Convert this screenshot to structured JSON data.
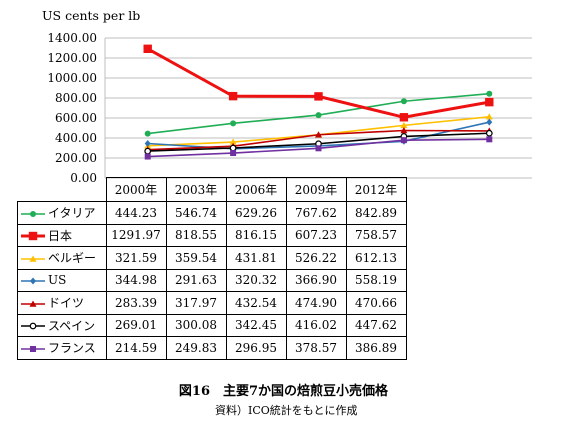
{
  "chart_data": {
    "type": "line",
    "ylabel": "US cents per lb",
    "categories": [
      "2000年",
      "2003年",
      "2006年",
      "2009年",
      "2012年"
    ],
    "ylim": [
      0,
      1400
    ],
    "yticks": [
      "0.00",
      "200.00",
      "400.00",
      "600.00",
      "800.00",
      "1000.00",
      "1200.00",
      "1400.00"
    ],
    "grid": true,
    "legend": "table-left",
    "series": [
      {
        "name": "イタリア",
        "color": "#1fae55",
        "marker": "circle",
        "values": [
          444.23,
          546.74,
          629.26,
          767.62,
          842.89
        ],
        "labels": [
          "444.23",
          "546.74",
          "629.26",
          "767.62",
          "842.89"
        ]
      },
      {
        "name": "日本",
        "color": "#ee1111",
        "marker": "square",
        "values": [
          1291.97,
          818.55,
          816.15,
          607.23,
          758.57
        ],
        "labels": [
          "1291.97",
          "818.55",
          "816.15",
          "607.23",
          "758.57"
        ]
      },
      {
        "name": "ベルギー",
        "color": "#ffc000",
        "marker": "triangle",
        "values": [
          321.59,
          359.54,
          431.81,
          526.22,
          612.13
        ],
        "labels": [
          "321.59",
          "359.54",
          "431.81",
          "526.22",
          "612.13"
        ]
      },
      {
        "name": "US",
        "color": "#2e75b6",
        "marker": "diamond",
        "values": [
          344.98,
          291.63,
          320.32,
          366.9,
          558.19
        ],
        "labels": [
          "344.98",
          "291.63",
          "320.32",
          "366.90",
          "558.19"
        ]
      },
      {
        "name": "ドイツ",
        "color": "#c00000",
        "marker": "triangle",
        "values": [
          283.39,
          317.97,
          432.54,
          474.9,
          470.66
        ],
        "labels": [
          "283.39",
          "317.97",
          "432.54",
          "474.90",
          "470.66"
        ]
      },
      {
        "name": "スペイン",
        "color": "#000000",
        "marker": "open-circle",
        "values": [
          269.01,
          300.08,
          342.45,
          416.02,
          447.62
        ],
        "labels": [
          "269.01",
          "300.08",
          "342.45",
          "416.02",
          "447.62"
        ]
      },
      {
        "name": "フランス",
        "color": "#7030a0",
        "marker": "square",
        "values": [
          214.59,
          249.83,
          296.95,
          378.57,
          386.89
        ],
        "labels": [
          "214.59",
          "249.83",
          "296.95",
          "378.57",
          "386.89"
        ]
      }
    ]
  },
  "caption": "図16　主要7か国の焙煎豆小売価格",
  "source": "資料）ICO統計をもとに作成"
}
